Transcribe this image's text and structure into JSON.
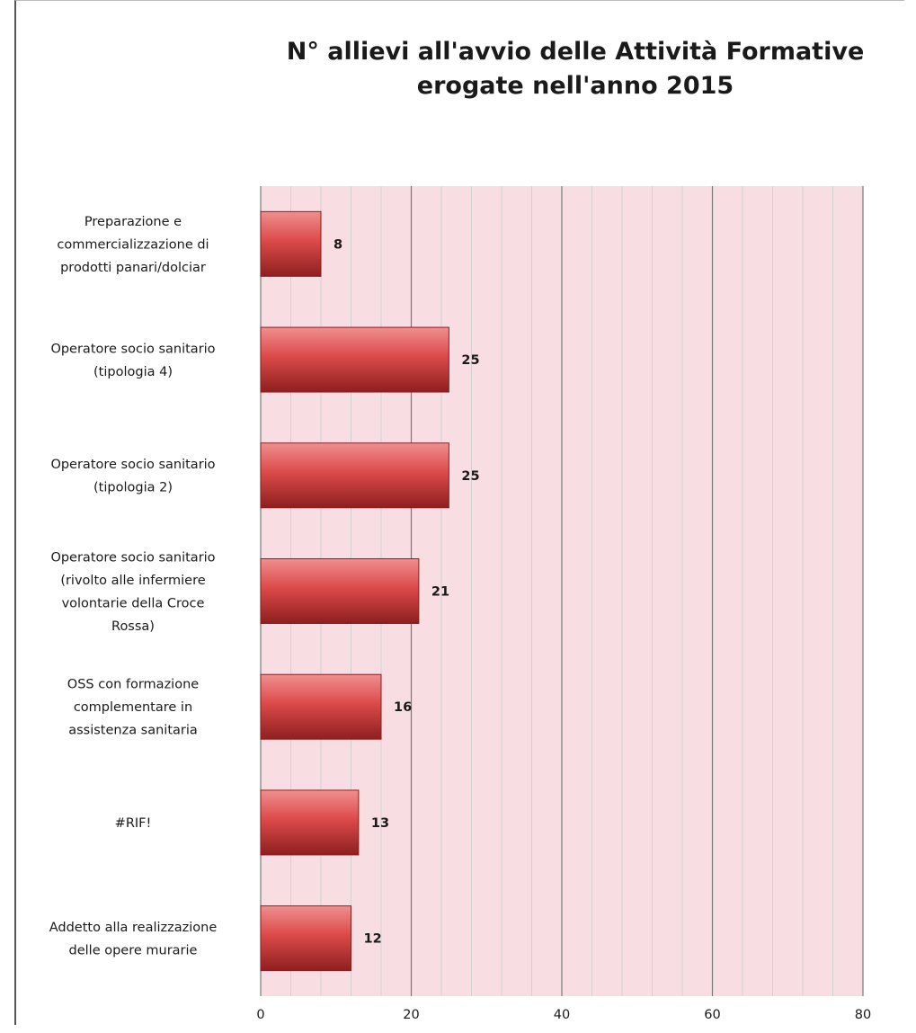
{
  "chart_data": {
    "type": "bar",
    "orientation": "horizontal",
    "title": [
      "N° allievi all'avvio delle Attività  Formative",
      "erogate nell'anno 2015"
    ],
    "categories": [
      [
        "Preparazione e",
        "commercializzazione di",
        "prodotti panari/dolciar"
      ],
      [
        "Operatore socio sanitario",
        "(tipologia 4)"
      ],
      [
        "Operatore socio sanitario",
        "(tipologia 2)"
      ],
      [
        "Operatore socio sanitario",
        "(rivolto alle infermiere",
        "volontarie della Croce",
        "Rossa)"
      ],
      [
        "OSS con formazione",
        "complementare in",
        "assistenza sanitaria"
      ],
      [
        "#RIF!"
      ],
      [
        "Addetto alla realizzazione",
        "delle opere murarie"
      ]
    ],
    "values": [
      8,
      25,
      25,
      21,
      16,
      13,
      12
    ],
    "data_labels": [
      "8",
      "25",
      "25",
      "21",
      "16",
      "13",
      "12"
    ],
    "xlim": [
      0,
      80
    ],
    "x_ticks": [
      "0",
      "20",
      "40",
      "60",
      "80"
    ],
    "x_tick_values": [
      0,
      20,
      40,
      60,
      80
    ],
    "minor_step": 4,
    "grid": true,
    "legend": "none",
    "colors": {
      "plot_background": "#f8dde2",
      "bar_fill": "#dc4a4a",
      "bar_light": "#ef8f8f",
      "bar_dark": "#8e1f1f",
      "major_grid": "#7a7a7a",
      "minor_grid": "#d2d2d2"
    }
  }
}
